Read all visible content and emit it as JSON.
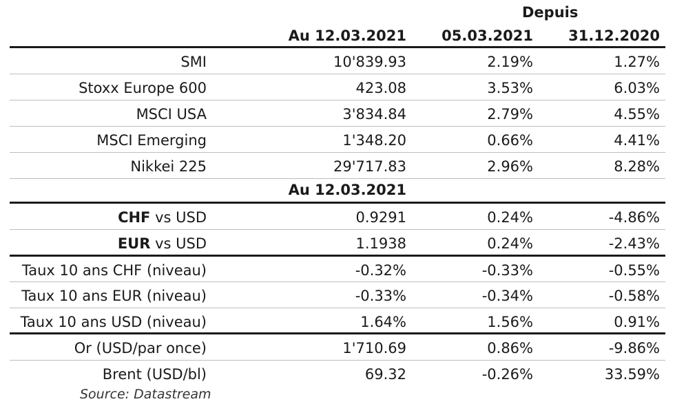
{
  "header": {
    "depuis": "Depuis",
    "col1": "Au 12.03.2021",
    "col2": "05.03.2021",
    "col3": "31.12.2020"
  },
  "section1": [
    {
      "label": "SMI",
      "value": "10'839.93",
      "d1": "2.19%",
      "d2": "1.27%"
    },
    {
      "label": "Stoxx Europe 600",
      "value": "423.08",
      "d1": "3.53%",
      "d2": "6.03%"
    },
    {
      "label": "MSCI USA",
      "value": "3'834.84",
      "d1": "2.79%",
      "d2": "4.55%"
    },
    {
      "label": "MSCI Emerging",
      "value": "1'348.20",
      "d1": "0.66%",
      "d2": "4.41%"
    },
    {
      "label": "Nikkei 225",
      "value": "29'717.83",
      "d1": "2.96%",
      "d2": "8.28%"
    }
  ],
  "subheader": "Au 12.03.2021",
  "fx": [
    {
      "code": "CHF",
      "suffix": " vs USD",
      "value": "0.9291",
      "d1": "0.24%",
      "d2": "-4.86%"
    },
    {
      "code": "EUR",
      "suffix": " vs USD",
      "value": "1.1938",
      "d1": "0.24%",
      "d2": "-2.43%"
    }
  ],
  "rates": [
    {
      "label": "Taux 10 ans CHF (niveau)",
      "value": "-0.32%",
      "d1": "-0.33%",
      "d2": "-0.55%"
    },
    {
      "label": "Taux 10 ans EUR (niveau)",
      "value": "-0.33%",
      "d1": "-0.34%",
      "d2": "-0.58%"
    },
    {
      "label": "Taux 10 ans USD (niveau)",
      "value": "1.64%",
      "d1": "1.56%",
      "d2": "0.91%"
    }
  ],
  "commodities": [
    {
      "label": "Or (USD/par once)",
      "value": "1'710.69",
      "d1": "0.86%",
      "d2": "-9.86%"
    },
    {
      "label": "Brent (USD/bl)",
      "value": "69.32",
      "d1": "-0.26%",
      "d2": "33.59%"
    }
  ],
  "source": "Source: Datastream"
}
